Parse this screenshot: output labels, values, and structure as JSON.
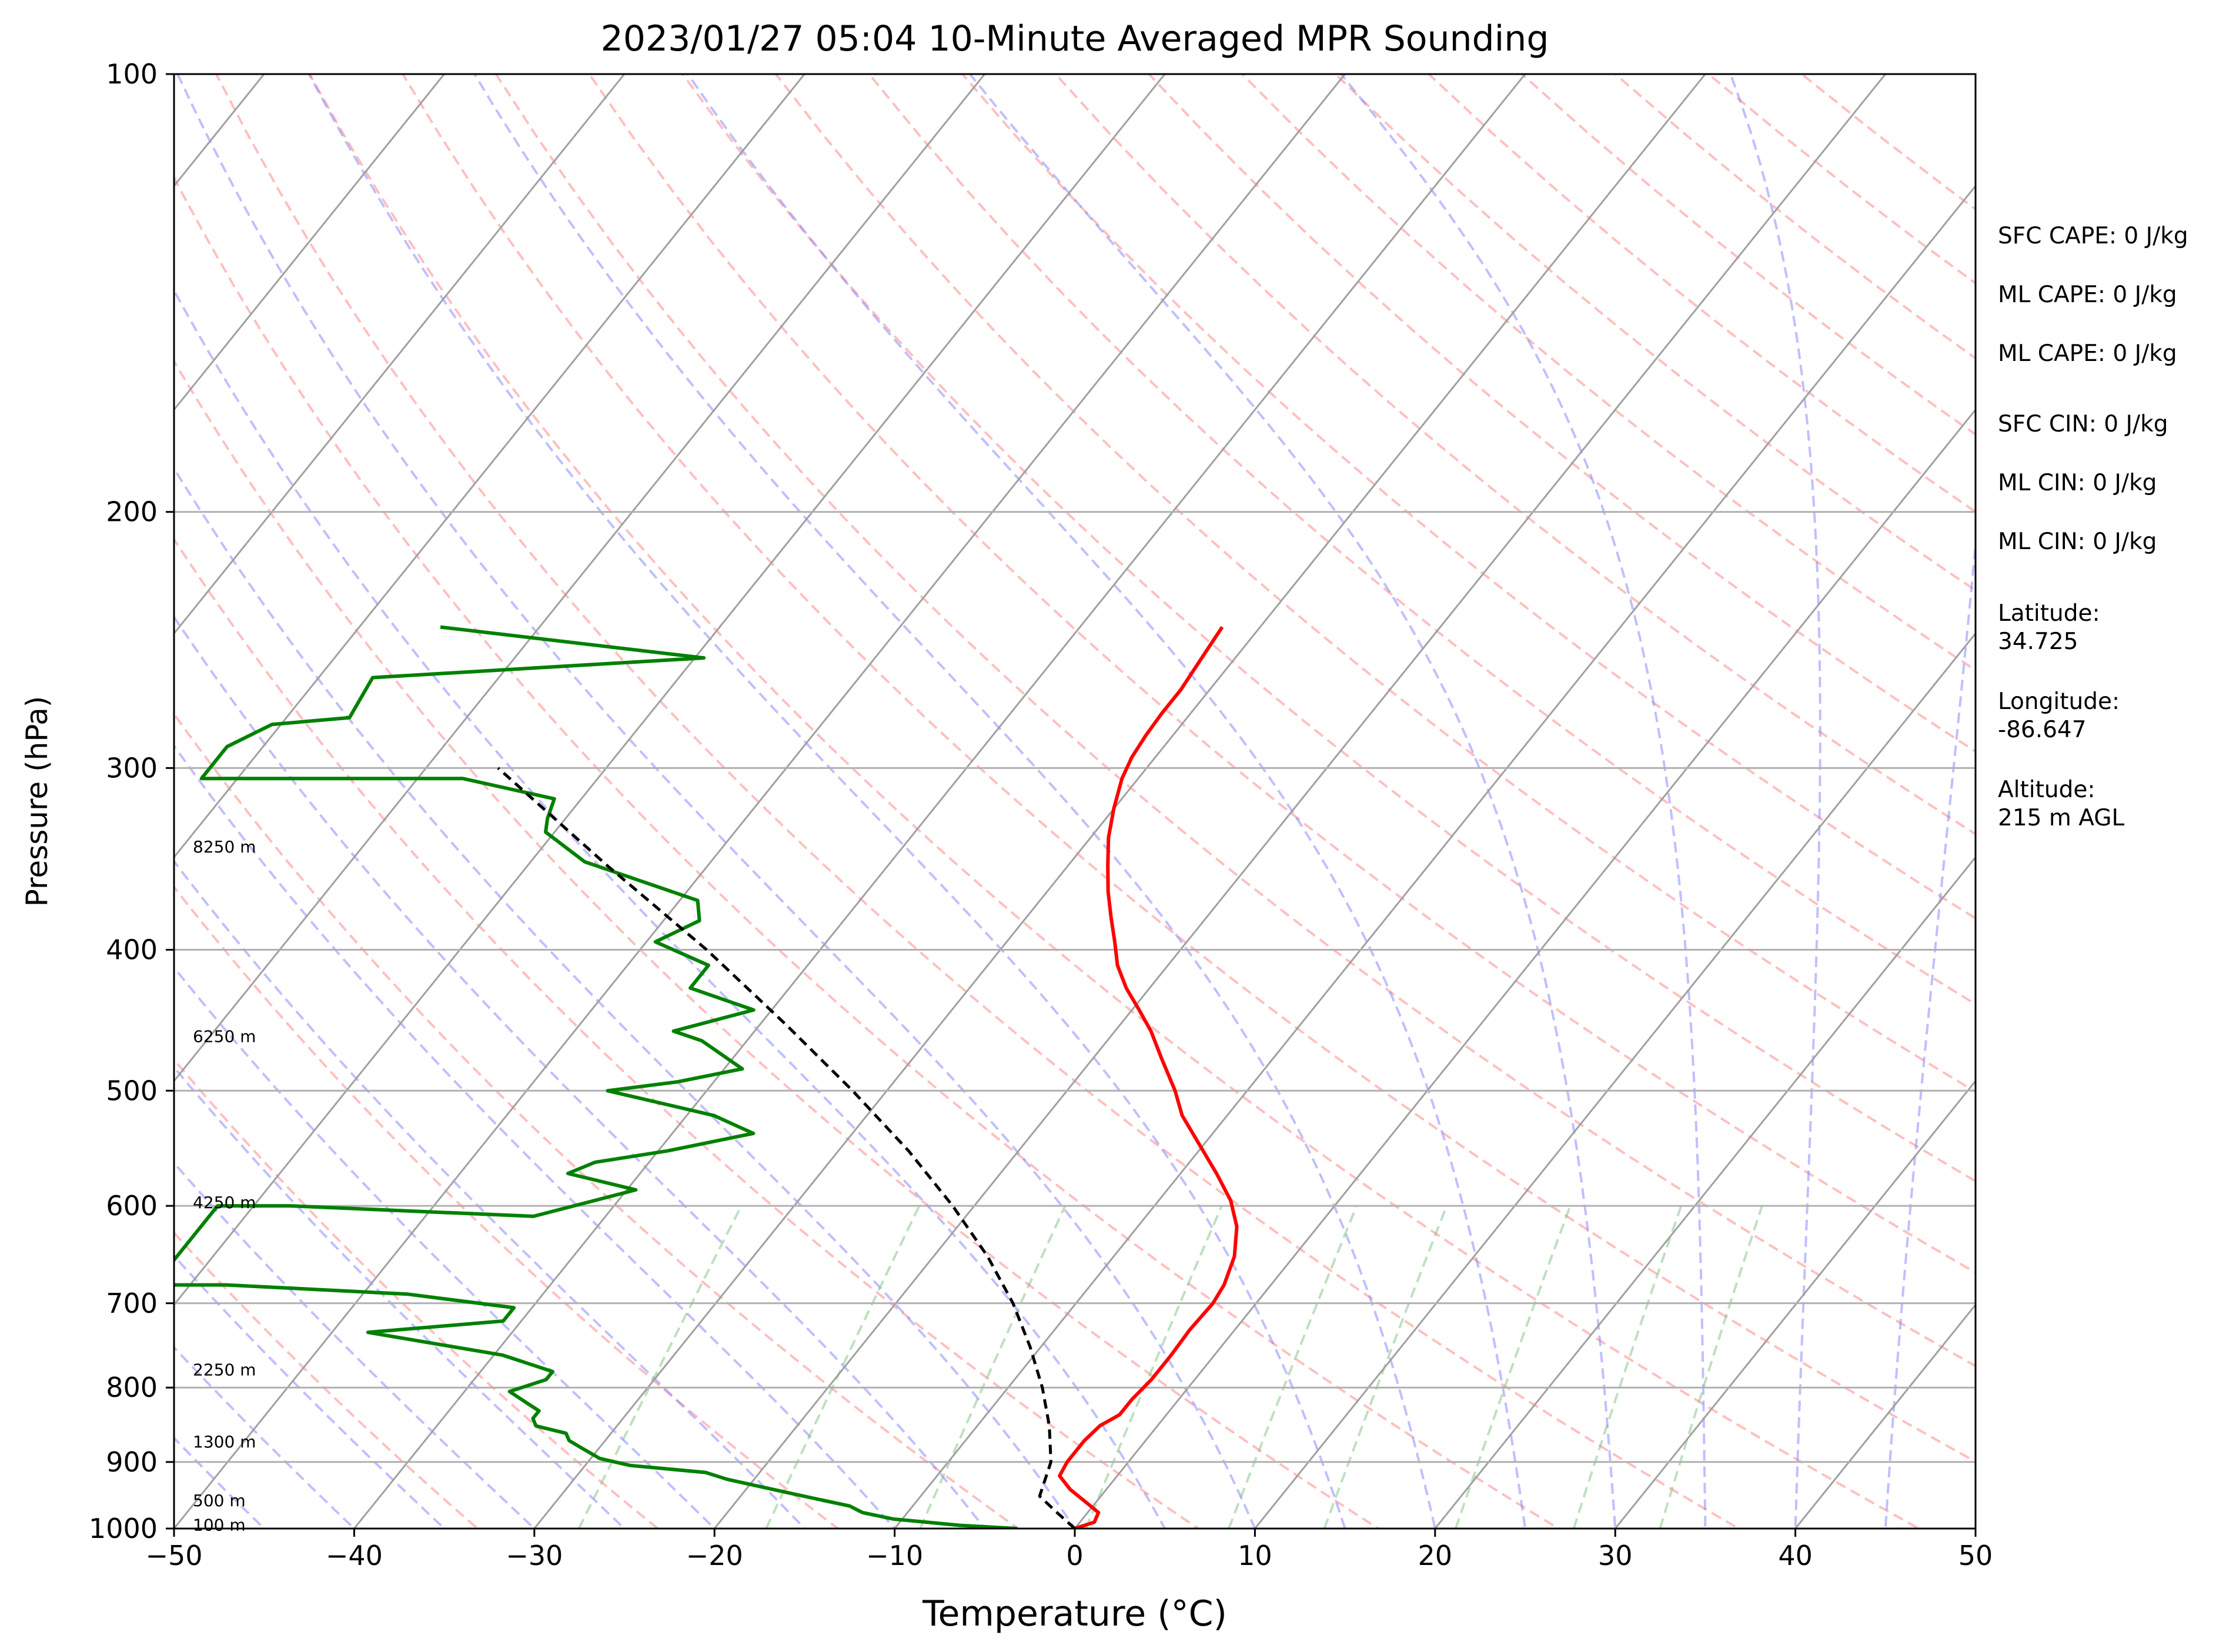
{
  "chart_data": {
    "type": "line",
    "title": "2023/01/27 05:04 10-Minute Averaged MPR Sounding",
    "xlabel": "Temperature (°C)",
    "ylabel": "Pressure (hPa)",
    "xlim": [
      -50,
      50
    ],
    "ylim": [
      1000,
      100
    ],
    "y_scale": "log",
    "x_ticks": [
      -50,
      -40,
      -30,
      -20,
      -10,
      0,
      10,
      20,
      30,
      40,
      50
    ],
    "x_tick_labels": [
      "−50",
      "−40",
      "−30",
      "−20",
      "−10",
      "0",
      "10",
      "20",
      "30",
      "40",
      "50"
    ],
    "y_ticks": [
      1000,
      900,
      800,
      700,
      600,
      500,
      400,
      300,
      200,
      100
    ],
    "y_tick_labels": [
      "1000",
      "900",
      "800",
      "700",
      "600",
      "500",
      "400",
      "300",
      "200",
      "100"
    ],
    "grid": "horizontal isobars at y ticks",
    "skew": "skew-T log-p diagram with dry adiabats, moist adiabats, mixing-ratio lines and skewed isotherms",
    "series": [
      {
        "color": "#ff0000",
        "style": "solid",
        "points": [
          [
            0.0,
            1000
          ],
          [
            0.8,
            990
          ],
          [
            0.6,
            975
          ],
          [
            -0.5,
            960
          ],
          [
            -2.0,
            940
          ],
          [
            -3.2,
            920
          ],
          [
            -3.4,
            900
          ],
          [
            -3.4,
            870
          ],
          [
            -3.2,
            850
          ],
          [
            -2.6,
            835
          ],
          [
            -2.6,
            815
          ],
          [
            -2.4,
            790
          ],
          [
            -2.4,
            760
          ],
          [
            -2.5,
            730
          ],
          [
            -2.4,
            700
          ],
          [
            -2.6,
            680
          ],
          [
            -3.3,
            650
          ],
          [
            -4.5,
            620
          ],
          [
            -6.0,
            595
          ],
          [
            -8.0,
            570
          ],
          [
            -10.2,
            545
          ],
          [
            -12.5,
            520
          ],
          [
            -14.0,
            500
          ],
          [
            -16.2,
            475
          ],
          [
            -18.0,
            455
          ],
          [
            -19.6,
            440
          ],
          [
            -21.3,
            425
          ],
          [
            -22.8,
            410
          ],
          [
            -24.0,
            395
          ],
          [
            -25.3,
            380
          ],
          [
            -26.6,
            365
          ],
          [
            -27.8,
            350
          ],
          [
            -29.0,
            335
          ],
          [
            -30.0,
            320
          ],
          [
            -30.9,
            305
          ],
          [
            -31.3,
            295
          ],
          [
            -31.5,
            285
          ],
          [
            -31.6,
            275
          ],
          [
            -31.6,
            265
          ],
          [
            -31.8,
            255
          ],
          [
            -32.0,
            245
          ],
          [
            -32.1,
            240
          ]
        ]
      },
      {
        "color": "#008000",
        "style": "solid",
        "points": [
          [
            -3.2,
            1000
          ],
          [
            -6.5,
            995
          ],
          [
            -10.5,
            985
          ],
          [
            -12.5,
            975
          ],
          [
            -13.5,
            965
          ],
          [
            -15.5,
            955
          ],
          [
            -17.5,
            945
          ],
          [
            -21.5,
            925
          ],
          [
            -23.0,
            915
          ],
          [
            -27.5,
            905
          ],
          [
            -29.5,
            895
          ],
          [
            -31.0,
            880
          ],
          [
            -32.0,
            870
          ],
          [
            -32.5,
            860
          ],
          [
            -34.5,
            850
          ],
          [
            -35.0,
            840
          ],
          [
            -35.0,
            830
          ],
          [
            -36.0,
            820
          ],
          [
            -37.5,
            805
          ],
          [
            -36.0,
            790
          ],
          [
            -36.0,
            780
          ],
          [
            -39.5,
            760
          ],
          [
            -48.0,
            733
          ],
          [
            -41.0,
            720
          ],
          [
            -41.0,
            705
          ],
          [
            -47.5,
            690
          ],
          [
            -58.0,
            680
          ],
          [
            -62.0,
            680
          ],
          [
            -62.0,
            650
          ],
          [
            -62.0,
            600
          ],
          [
            -58.0,
            600
          ],
          [
            -44.0,
            610
          ],
          [
            -39.5,
            585
          ],
          [
            -44.0,
            570
          ],
          [
            -43.0,
            560
          ],
          [
            -39.5,
            550
          ],
          [
            -35.5,
            535
          ],
          [
            -38.5,
            520
          ],
          [
            -45.5,
            500
          ],
          [
            -42.0,
            493
          ],
          [
            -39.0,
            483
          ],
          [
            -42.5,
            462
          ],
          [
            -44.5,
            455
          ],
          [
            -41.0,
            440
          ],
          [
            -45.5,
            425
          ],
          [
            -45.5,
            410
          ],
          [
            -49.5,
            395
          ],
          [
            -48.0,
            382
          ],
          [
            -49.0,
            370
          ],
          [
            -57.0,
            348
          ],
          [
            -60.5,
            332
          ],
          [
            -61.0,
            325
          ],
          [
            -61.5,
            315
          ],
          [
            -67.5,
            305
          ],
          [
            -82.0,
            305
          ],
          [
            -82.0,
            290
          ],
          [
            -80.5,
            280
          ],
          [
            -76.5,
            277
          ],
          [
            -77.0,
            260
          ],
          [
            -59.5,
            252
          ],
          [
            -75.5,
            240
          ]
        ]
      },
      {
        "color": "#000000",
        "style": "dashed",
        "points": [
          [
            0.0,
            1000
          ],
          [
            -1.7,
            975
          ],
          [
            -3.4,
            950
          ],
          [
            -4.3,
            900
          ],
          [
            -6.0,
            850
          ],
          [
            -8.1,
            800
          ],
          [
            -10.6,
            750
          ],
          [
            -13.5,
            700
          ],
          [
            -17.0,
            650
          ],
          [
            -21.2,
            600
          ],
          [
            -26.1,
            550
          ],
          [
            -31.9,
            500
          ],
          [
            -38.6,
            450
          ],
          [
            -46.3,
            400
          ],
          [
            -55.6,
            350
          ],
          [
            -66.0,
            300
          ]
        ]
      }
    ],
    "height_annotations": [
      {
        "label": "100 m",
        "p": 995
      },
      {
        "label": "500 m",
        "p": 957
      },
      {
        "label": "1300 m",
        "p": 872
      },
      {
        "label": "2250 m",
        "p": 778
      },
      {
        "label": "4250 m",
        "p": 597
      },
      {
        "label": "6250 m",
        "p": 459
      },
      {
        "label": "8250 m",
        "p": 340
      }
    ],
    "colors": {
      "temperature": "#ff0000",
      "dewpoint": "#008000",
      "parcel": "#000000",
      "dry_adiabats": "#ff7f7f",
      "moist_adiabats": "#7f7fff",
      "mixing_ratio": "#7fbf7f",
      "isotherms": "#a0a0a0"
    },
    "annotations": [
      "SFC CAPE: 0 J/kg",
      "ML CAPE: 0 J/kg",
      "ML CAPE: 0 J/kg",
      "SFC CIN: 0 J/kg",
      "ML CIN: 0 J/kg",
      "ML CIN: 0 J/kg",
      "Latitude:\n34.725",
      "Longitude:\n-86.647",
      "Altitude:\n215 m AGL"
    ]
  }
}
